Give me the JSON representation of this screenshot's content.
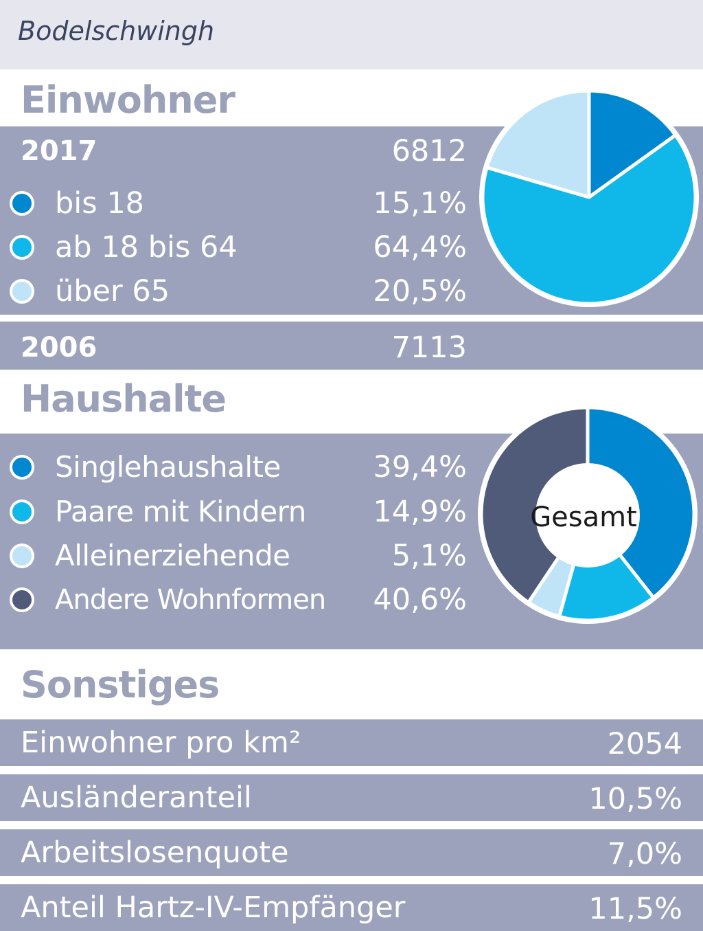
{
  "header": {
    "title": "Bodelschwingh"
  },
  "einwohner": {
    "title": "Einwohner",
    "year_2017": {
      "label": "2017",
      "value": "6812"
    },
    "year_2006": {
      "label": "2006",
      "value": "7113"
    }
  },
  "haushalte": {
    "title": "Haushalte",
    "center_label": "Gesamt"
  },
  "sonstiges": {
    "title": "Sonstiges",
    "rows": [
      {
        "label": "Einwohner pro km²",
        "value": "2054"
      },
      {
        "label": "Ausländeranteil",
        "value": "10,5%"
      },
      {
        "label": "Arbeitslosenquote",
        "value": "7,0%"
      },
      {
        "label": "Anteil Hartz-IV-Empfänger",
        "value": "11,5%"
      }
    ]
  },
  "chart_data": [
    {
      "type": "pie",
      "categories": [
        "bis 18",
        "ab 18 bis 64",
        "über 65"
      ],
      "values": [
        15.1,
        64.4,
        20.5
      ],
      "value_labels": [
        "15,1%",
        "64,4%",
        "20,5%"
      ],
      "colors": [
        "#0087cf",
        "#10b8ea",
        "#bfe3f7"
      ]
    },
    {
      "type": "pie",
      "categories": [
        "Singlehaushalte",
        "Paare mit Kindern",
        "Alleinerziehende",
        "Andere Wohnformen"
      ],
      "values": [
        39.4,
        14.9,
        5.1,
        40.6
      ],
      "value_labels": [
        "39,4%",
        "14,9%",
        "5,1%",
        "40,6%"
      ],
      "colors": [
        "#0087cf",
        "#10b8ea",
        "#bfe3f7",
        "#4f5b78"
      ]
    }
  ]
}
